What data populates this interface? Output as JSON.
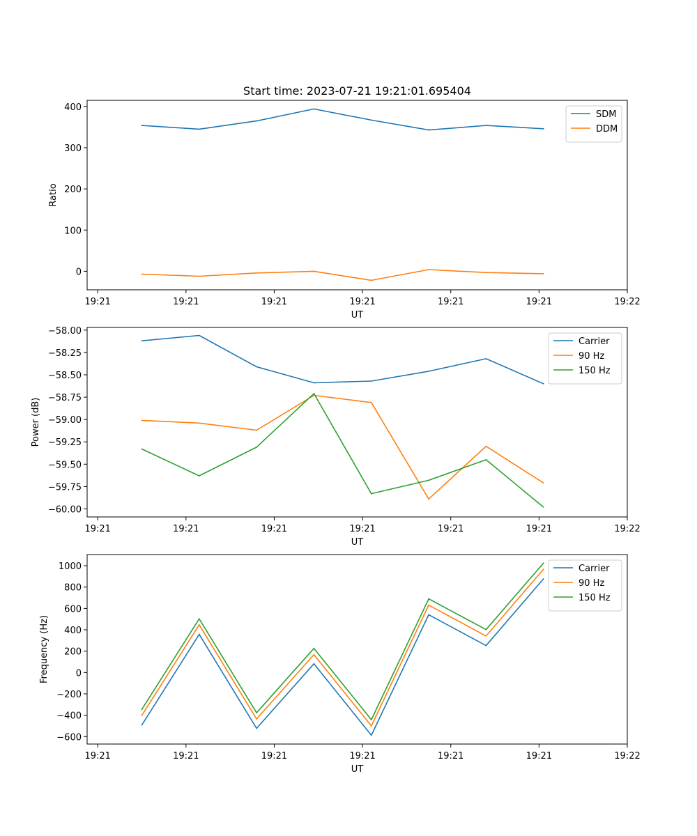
{
  "chart_data": [
    {
      "type": "line",
      "title": "Start time: 2023-07-21 19:21:01.695404",
      "xlabel": "UT",
      "ylabel": "Ratio",
      "x_tick_labels": [
        "19:21",
        "19:21",
        "19:21",
        "19:21",
        "19:21",
        "19:21",
        "19:22"
      ],
      "x_point_index": [
        0.5,
        1.15,
        1.8,
        2.45,
        3.1,
        3.75,
        4.4,
        5.05
      ],
      "xlim": [
        -0.12,
        6.0
      ],
      "ylim": [
        -45,
        415
      ],
      "yticks": [
        0,
        100,
        200,
        300,
        400
      ],
      "ytick_labels": [
        "0",
        "100",
        "200",
        "300",
        "400"
      ],
      "legend_position": "top-right",
      "series": [
        {
          "name": "SDM",
          "color": "#1f77b4",
          "values": [
            354,
            345,
            365,
            394,
            367,
            343,
            354,
            346
          ]
        },
        {
          "name": "DDM",
          "color": "#ff7f0e",
          "values": [
            -7,
            -12,
            -4,
            0,
            -22,
            4,
            -3,
            -6
          ]
        }
      ]
    },
    {
      "type": "line",
      "xlabel": "UT",
      "ylabel": "Power (dB)",
      "x_tick_labels": [
        "19:21",
        "19:21",
        "19:21",
        "19:21",
        "19:21",
        "19:21",
        "19:22"
      ],
      "x_point_index": [
        0.5,
        1.15,
        1.8,
        2.45,
        3.1,
        3.75,
        4.4,
        5.05
      ],
      "xlim": [
        -0.12,
        6.0
      ],
      "ylim": [
        -60.09,
        -57.97
      ],
      "yticks": [
        -58.0,
        -58.25,
        -58.5,
        -58.75,
        -59.0,
        -59.25,
        -59.5,
        -59.75,
        -60.0
      ],
      "ytick_labels": [
        "−58.00",
        "−58.25",
        "−58.50",
        "−58.75",
        "−59.00",
        "−59.25",
        "−59.50",
        "−59.75",
        "−60.00"
      ],
      "legend_position": "top-right",
      "series": [
        {
          "name": "Carrier",
          "color": "#1f77b4",
          "values": [
            -58.12,
            -58.06,
            -58.41,
            -58.59,
            -58.57,
            -58.46,
            -58.32,
            -58.6
          ]
        },
        {
          "name": "90 Hz",
          "color": "#ff7f0e",
          "values": [
            -59.01,
            -59.04,
            -59.12,
            -58.73,
            -58.81,
            -59.89,
            -59.3,
            -59.71
          ]
        },
        {
          "name": "150 Hz",
          "color": "#2ca02c",
          "values": [
            -59.33,
            -59.63,
            -59.31,
            -58.71,
            -59.83,
            -59.68,
            -59.45,
            -59.98
          ]
        }
      ]
    },
    {
      "type": "line",
      "xlabel": "UT",
      "ylabel": "Frequency (Hz)",
      "x_tick_labels": [
        "19:21",
        "19:21",
        "19:21",
        "19:21",
        "19:21",
        "19:21",
        "19:22"
      ],
      "x_point_index": [
        0.5,
        1.15,
        1.8,
        2.45,
        3.1,
        3.75,
        4.4,
        5.05
      ],
      "xlim": [
        -0.12,
        6.0
      ],
      "ylim": [
        -670,
        1105
      ],
      "yticks": [
        -600,
        -400,
        -200,
        0,
        200,
        400,
        600,
        800,
        1000
      ],
      "ytick_labels": [
        "−600",
        "−400",
        "−200",
        "0",
        "200",
        "400",
        "600",
        "800",
        "1000"
      ],
      "legend_position": "top-right",
      "series": [
        {
          "name": "Carrier",
          "color": "#1f77b4",
          "values": [
            -492,
            357,
            -523,
            82,
            -588,
            541,
            252,
            877
          ]
        },
        {
          "name": "90 Hz",
          "color": "#ff7f0e",
          "values": [
            -402,
            447,
            -435,
            168,
            -500,
            631,
            342,
            967
          ]
        },
        {
          "name": "150 Hz",
          "color": "#2ca02c",
          "values": [
            -345,
            503,
            -377,
            226,
            -442,
            690,
            402,
            1025
          ]
        }
      ]
    }
  ]
}
